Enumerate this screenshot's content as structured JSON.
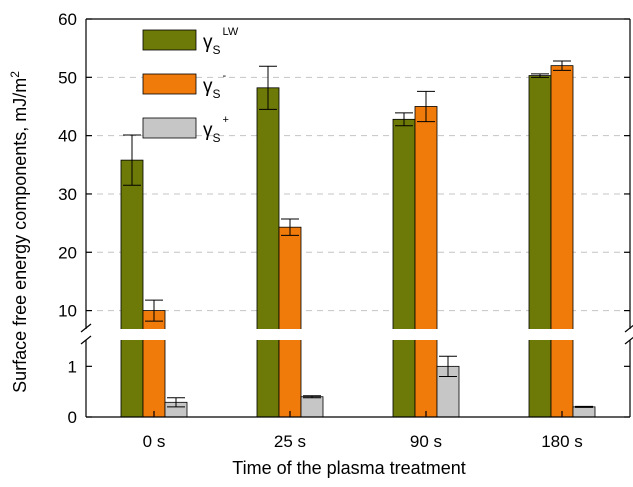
{
  "chart_data": {
    "type": "bar",
    "title": "",
    "xlabel": "Time of the plasma treatment",
    "ylabel": "Surface free energy components, mJ/m",
    "ylabel_superscript": "2",
    "categories": [
      "0 s",
      "25 s",
      "90 s",
      "180 s"
    ],
    "axis_break": true,
    "y_segments": [
      {
        "range": [
          0,
          1.5
        ],
        "ticks": [
          0,
          1
        ]
      },
      {
        "range": [
          6.5,
          60
        ],
        "ticks": [
          10,
          20,
          30,
          40,
          50,
          60
        ]
      }
    ],
    "grid": "horizontal dashed at 10, 20, 30, 40, 50",
    "legend_position": "top-left",
    "series": [
      {
        "symbol": "γ",
        "subscript": "S",
        "superscript": "LW",
        "color": "#6e7a07",
        "values": [
          35.8,
          48.2,
          42.8,
          50.3
        ],
        "errors": [
          4.3,
          3.7,
          1.1,
          0.3
        ]
      },
      {
        "symbol": "γ",
        "subscript": "S",
        "superscript": "-",
        "color": "#f07a0a",
        "values": [
          10.0,
          24.3,
          45.0,
          52.0
        ],
        "errors": [
          1.8,
          1.4,
          2.6,
          0.8
        ]
      },
      {
        "symbol": "γ",
        "subscript": "S",
        "superscript": "+",
        "color": "#c6c6c6",
        "values": [
          0.29,
          0.4,
          1.0,
          0.2
        ],
        "errors": [
          0.09,
          0.02,
          0.2,
          0.01
        ]
      }
    ]
  }
}
